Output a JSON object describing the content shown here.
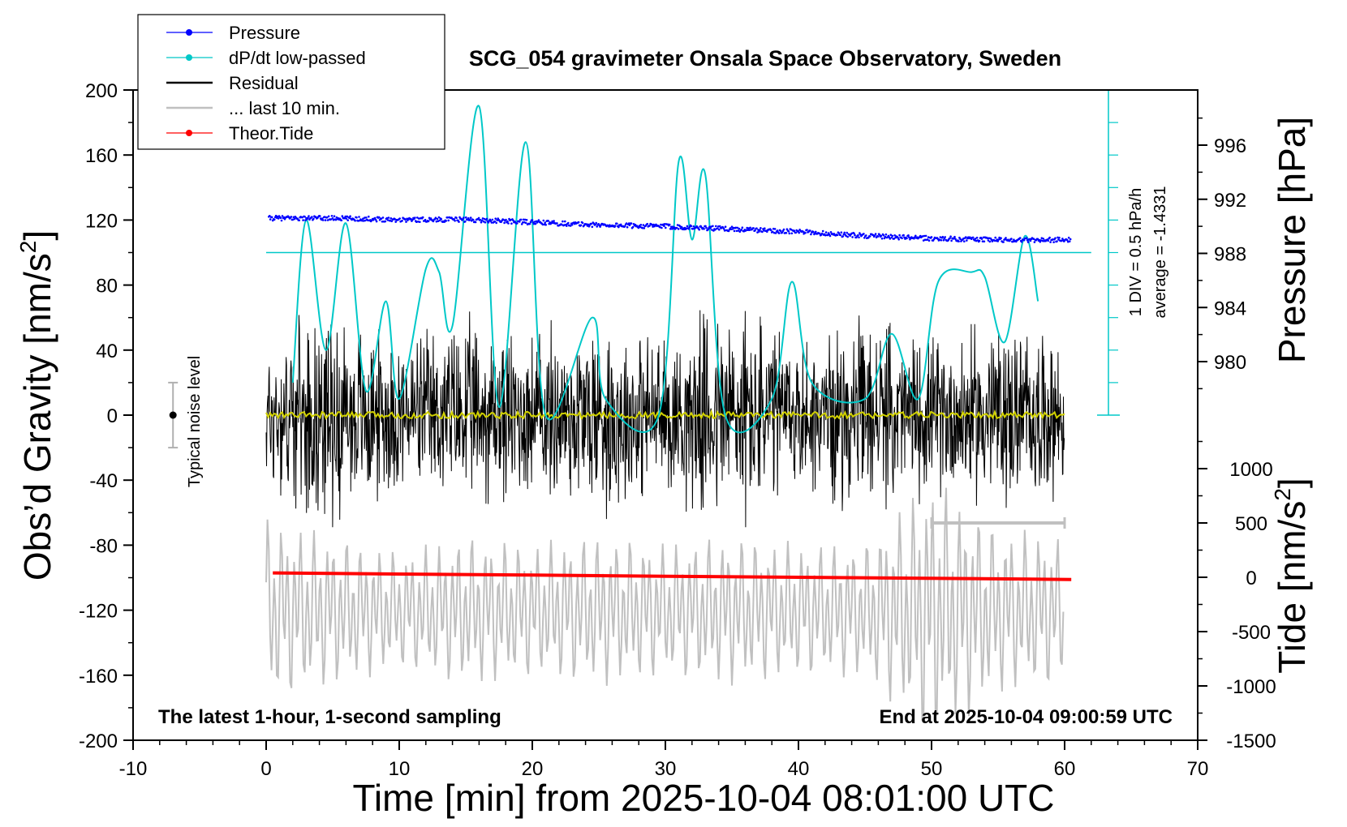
{
  "chart_data": {
    "type": "line",
    "title": "SCG_054 gravimeter Onsala Space Observatory, Sweden",
    "xlabel": "Time [min] from 2025-10-04 08:01:00 UTC",
    "ylabel_left_main": "Obs’d Gravity [nm/s",
    "ylabel_left_sup": "2",
    "ylabel_left_end": "]",
    "ylabel_right_top": "Pressure [hPa]",
    "ylabel_right_bottom_main": "Tide [nm/s",
    "ylabel_right_bottom_sup": "2",
    "ylabel_right_bottom_end": "]",
    "xlim": [
      -10,
      70
    ],
    "ylim": [
      -200,
      200
    ],
    "pressure_lim": [
      976,
      1000
    ],
    "tide_lim": [
      -1500,
      1500
    ],
    "x_ticks": [
      -10,
      0,
      10,
      20,
      30,
      40,
      50,
      60,
      70
    ],
    "y_ticks": [
      -200,
      -160,
      -120,
      -80,
      -40,
      0,
      40,
      80,
      120,
      160,
      200
    ],
    "pressure_ticks": [
      980,
      984,
      988,
      992,
      996
    ],
    "tide_ticks": [
      -1500,
      -1000,
      -500,
      0,
      500,
      1000
    ],
    "annotation_bottom_left": "The latest 1-hour, 1-second sampling",
    "annotation_bottom_right": "End at 2025-10-04 09:00:59 UTC",
    "noise_label": "Typical noise level",
    "noise_bar": {
      "x": -7,
      "center": 0,
      "half_range": 20
    },
    "dpdt_scale_label": "1 DIV = 0.5 hPa/h",
    "dpdt_average_label": "average = -1.4331",
    "last10_bar": {
      "x_start": 50,
      "x_end": 60,
      "tide_value": 500
    },
    "legend": [
      {
        "label": "Pressure",
        "color": "#0000ff",
        "style": "dot-line"
      },
      {
        "label": "dP/dt low-passed",
        "color": "#00c8c8",
        "style": "dot-line"
      },
      {
        "label": "Residual",
        "color": "#000000",
        "style": "line"
      },
      {
        "label": "... last 10 min.",
        "color": "#c0c0c0",
        "style": "line"
      },
      {
        "label": "Theor.Tide",
        "color": "#ff0000",
        "style": "dot-line"
      }
    ],
    "series": [
      {
        "name": "Pressure",
        "axis": "pressure",
        "color": "#0000ff",
        "x": [
          0,
          5,
          10,
          15,
          20,
          25,
          30,
          35,
          40,
          45,
          50,
          55,
          60.5
        ],
        "y": [
          990.6,
          990.6,
          990.5,
          990.5,
          990.3,
          990.1,
          990.0,
          989.8,
          989.6,
          989.3,
          989.1,
          989.0,
          989.0
        ]
      },
      {
        "name": "dP/dt low-passed",
        "axis": "gravity",
        "color": "#00c8c8",
        "baseline": 100,
        "x": [
          2,
          3,
          4.5,
          6,
          7.5,
          9,
          10,
          12,
          13,
          14,
          16,
          17.5,
          19.5,
          21,
          24.5,
          25.5,
          29.5,
          31,
          32,
          33,
          34.5,
          38,
          39.5,
          41,
          45,
          47,
          49,
          50.5,
          53,
          54,
          55.5,
          57,
          58
        ],
        "y": [
          20,
          120,
          40,
          118,
          15,
          70,
          10,
          90,
          88,
          55,
          190,
          5,
          168,
          0,
          60,
          10,
          0,
          156,
          108,
          148,
          0,
          10,
          82,
          20,
          10,
          50,
          10,
          82,
          88,
          85,
          45,
          110,
          70
        ]
      },
      {
        "name": "Theor.Tide",
        "axis": "tide",
        "color": "#ff0000",
        "x": [
          0.5,
          10,
          20,
          30,
          40,
          50,
          60.5
        ],
        "y": [
          40,
          30,
          20,
          10,
          0,
          -10,
          -20
        ]
      },
      {
        "name": "Residual",
        "axis": "gravity",
        "color": "#000000",
        "envelope_x": [
          0,
          5,
          10,
          15,
          20,
          25,
          30,
          35,
          40,
          45,
          50,
          55,
          60
        ],
        "envelope_amp": [
          45,
          60,
          45,
          55,
          50,
          60,
          45,
          70,
          45,
          55,
          45,
          55,
          45
        ]
      },
      {
        "name": "... last 10 min.",
        "axis": "gravity",
        "color": "#c0c0c0",
        "center": -120,
        "envelope_x": [
          0,
          5,
          10,
          15,
          20,
          25,
          30,
          35,
          40,
          45,
          50,
          55,
          60
        ],
        "envelope_amp": [
          55,
          45,
          35,
          45,
          40,
          45,
          40,
          45,
          40,
          40,
          80,
          50,
          45
        ]
      },
      {
        "name": "residual-smoothed",
        "axis": "gravity",
        "color": "#d2d200",
        "x": [
          0,
          60
        ],
        "y": [
          0,
          0
        ]
      }
    ]
  }
}
